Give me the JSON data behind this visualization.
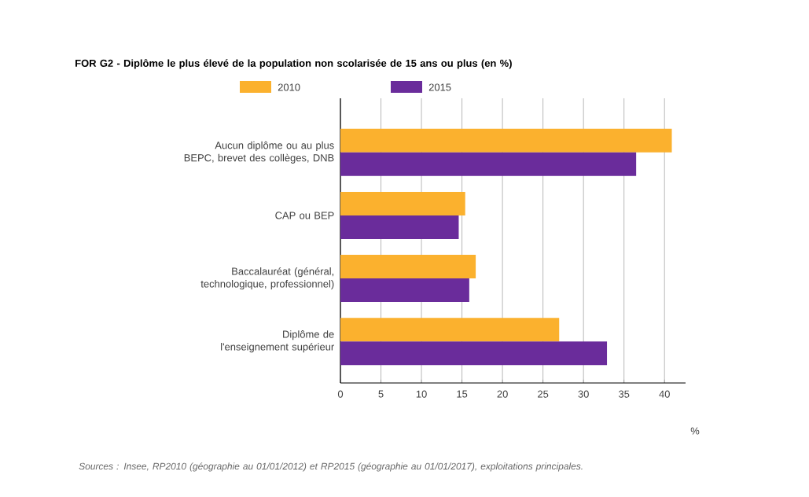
{
  "chart_data": {
    "type": "bar",
    "orientation": "horizontal",
    "title": "FOR G2 - Diplôme le plus élevé de la population non scolarisée de 15 ans ou plus (en %)",
    "categories": [
      "Aucun diplôme ou au plus BEPC, brevet des collèges, DNB",
      "CAP ou BEP",
      "Baccalauréat (général, technologique, professionnel)",
      "Diplôme de l'enseignement supérieur"
    ],
    "series": [
      {
        "name": "2010",
        "color": "#fbb12e",
        "values": [
          40.9,
          15.4,
          16.7,
          27.0
        ]
      },
      {
        "name": "2015",
        "color": "#6a2c9b",
        "values": [
          36.5,
          14.6,
          15.9,
          32.9
        ]
      }
    ],
    "xlim": [
      0,
      42.6
    ],
    "xticks": [
      0,
      5,
      10,
      15,
      20,
      25,
      30,
      35,
      40
    ],
    "xlabel": "%",
    "grid": "x",
    "legend": "top",
    "annotations": [
      "Sources : Insee, RP2010 (géographie au 01/01/2012) et RP2015 (géographie au 01/01/2017), exploitations principales."
    ]
  }
}
